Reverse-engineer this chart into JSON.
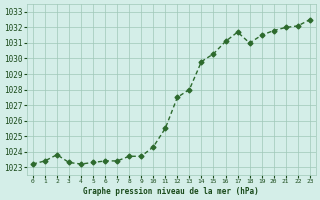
{
  "x": [
    0,
    1,
    2,
    3,
    4,
    5,
    6,
    7,
    8,
    9,
    10,
    11,
    12,
    13,
    14,
    15,
    16,
    17,
    18,
    19,
    20,
    21,
    22,
    23
  ],
  "y": [
    1023.2,
    1023.4,
    1023.8,
    1023.3,
    1023.2,
    1023.3,
    1023.4,
    1023.4,
    1023.7,
    1023.7,
    1024.3,
    1025.5,
    1027.5,
    1028.0,
    1029.8,
    1030.3,
    1031.1,
    1031.7,
    1031.0,
    1031.5,
    1031.8,
    1032.0,
    1032.1,
    1032.5
  ],
  "ylim": [
    1022.5,
    1033.5
  ],
  "yticks": [
    1023,
    1024,
    1025,
    1026,
    1027,
    1028,
    1029,
    1030,
    1031,
    1032,
    1033
  ],
  "xticks": [
    0,
    1,
    2,
    3,
    4,
    5,
    6,
    7,
    8,
    9,
    10,
    11,
    12,
    13,
    14,
    15,
    16,
    17,
    18,
    19,
    20,
    21,
    22,
    23
  ],
  "line_color": "#2d6a2d",
  "marker_color": "#2d6a2d",
  "bg_color": "#d4eee8",
  "grid_color": "#a0c8b8",
  "xlabel": "Graphe pression niveau de la mer (hPa)",
  "xlabel_color": "#1a4a1a",
  "tick_color": "#1a4a1a",
  "title_color": "#1a4a1a"
}
